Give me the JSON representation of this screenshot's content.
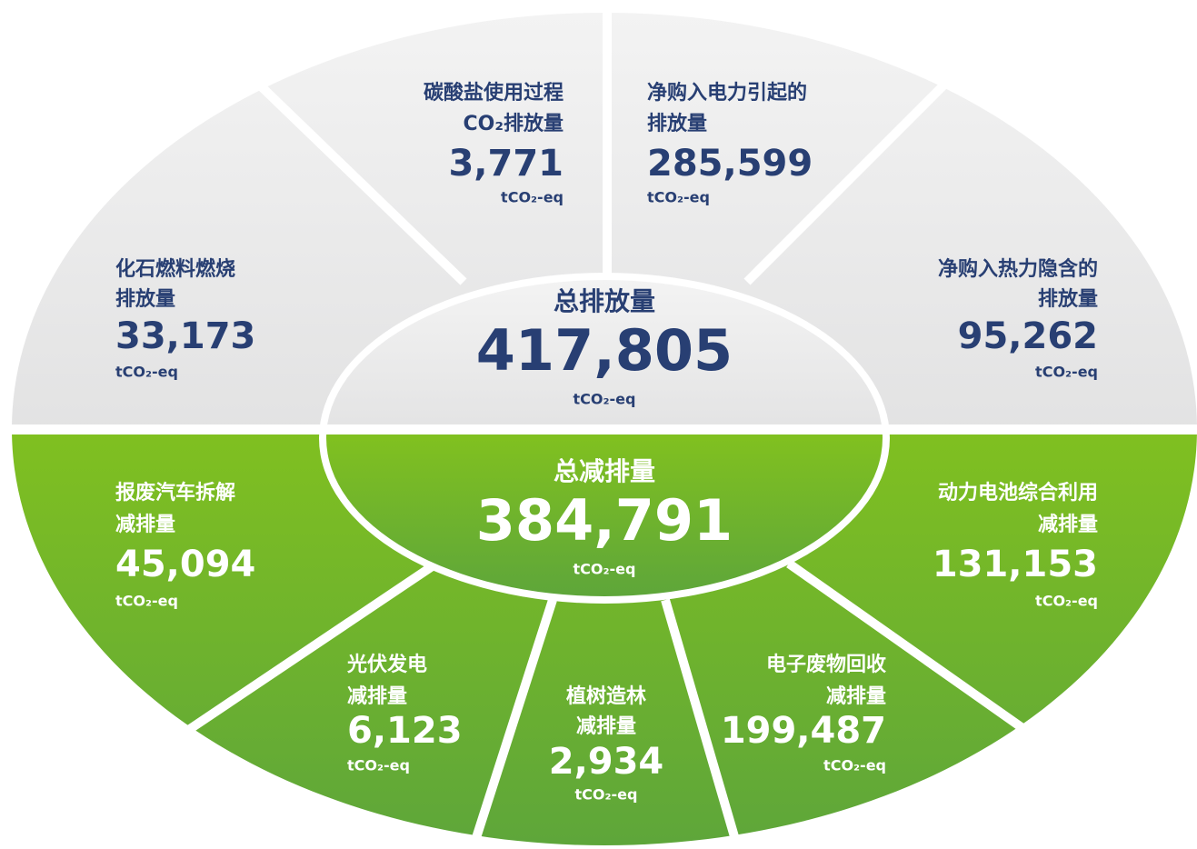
{
  "total_emissions": {
    "label_lines": [
      "总排放量"
    ],
    "value": "417,805",
    "unit": "tCO₂-eq"
  },
  "total_reduction": {
    "label_lines": [
      "总减排量"
    ],
    "value": "384,791",
    "unit": "tCO₂-eq"
  },
  "emissions": [
    {
      "label_lines": [
        "化石燃料燃烧",
        "排放量"
      ],
      "value": "33,173",
      "unit": "tCO₂-eq"
    },
    {
      "label_lines": [
        "碳酸盐使用过程",
        "CO₂排放量"
      ],
      "value": "3,771",
      "unit": "tCO₂-eq"
    },
    {
      "label_lines": [
        "净购入电力引起的",
        "排放量"
      ],
      "value": "285,599",
      "unit": "tCO₂-eq"
    },
    {
      "label_lines": [
        "净购入热力隐含的",
        "排放量"
      ],
      "value": "95,262",
      "unit": "tCO₂-eq"
    }
  ],
  "reductions": [
    {
      "label_lines": [
        "报废汽车拆解",
        "减排量"
      ],
      "value": "45,094",
      "unit": "tCO₂-eq"
    },
    {
      "label_lines": [
        "光伏发电",
        "减排量"
      ],
      "value": "6,123",
      "unit": "tCO₂-eq"
    },
    {
      "label_lines": [
        "植树造林",
        "减排量"
      ],
      "value": "2,934",
      "unit": "tCO₂-eq"
    },
    {
      "label_lines": [
        "电子废物回收",
        "减排量"
      ],
      "value": "199,487",
      "unit": "tCO₂-eq"
    },
    {
      "label_lines": [
        "动力电池综合利用",
        "减排量"
      ],
      "value": "131,153",
      "unit": "tCO₂-eq"
    }
  ]
}
